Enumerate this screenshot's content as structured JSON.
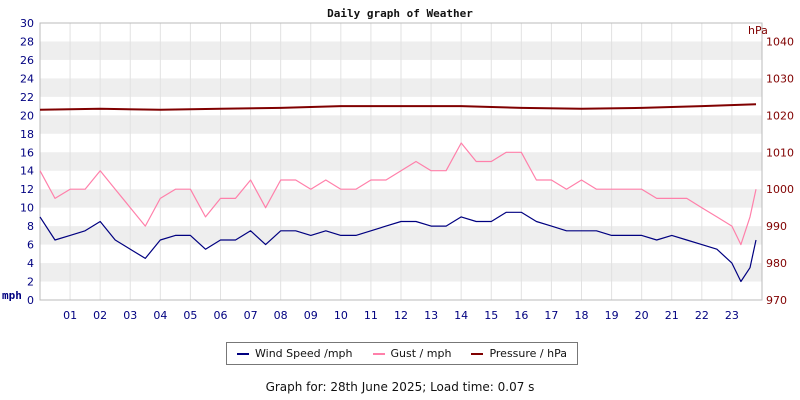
{
  "chart_data": {
    "type": "line",
    "title": "Daily graph of Weather",
    "left_axis": {
      "unit_label": "mph",
      "min": 0,
      "max": 30,
      "step": 2,
      "ticks": [
        "0",
        "2",
        "4",
        "6",
        "8",
        "10",
        "12",
        "14",
        "16",
        "18",
        "20",
        "22",
        "24",
        "26",
        "28",
        "30"
      ]
    },
    "right_axis": {
      "unit_label": "hPa",
      "min": 970,
      "max": 1045,
      "step": 10,
      "ticks": [
        "970",
        "980",
        "990",
        "1000",
        "1010",
        "1020",
        "1030",
        "1040"
      ]
    },
    "x_categories": [
      "01",
      "02",
      "03",
      "04",
      "05",
      "06",
      "07",
      "08",
      "09",
      "10",
      "11",
      "12",
      "13",
      "14",
      "15",
      "16",
      "17",
      "18",
      "19",
      "20",
      "21",
      "22",
      "23"
    ],
    "x_range": [
      0,
      24
    ],
    "series": [
      {
        "name": "Wind Speed /mph",
        "color": "#000080",
        "axis": "left",
        "x": [
          0,
          0.5,
          1,
          1.5,
          2,
          2.5,
          3,
          3.5,
          4,
          4.5,
          5,
          5.5,
          6,
          6.5,
          7,
          7.5,
          8,
          8.5,
          9,
          9.5,
          10,
          10.5,
          11,
          11.5,
          12,
          12.5,
          13,
          13.5,
          14,
          14.5,
          15,
          15.5,
          16,
          16.5,
          17,
          17.5,
          18,
          18.5,
          19,
          19.5,
          20,
          20.5,
          21,
          21.5,
          22,
          22.5,
          23,
          23.3,
          23.6,
          23.8
        ],
        "y": [
          9,
          6.5,
          7,
          7.5,
          8.5,
          6.5,
          5.5,
          4.5,
          6.5,
          7,
          7,
          5.5,
          6.5,
          6.5,
          7.5,
          6,
          7.5,
          7.5,
          7,
          7.5,
          7,
          7,
          7.5,
          8,
          8.5,
          8.5,
          8,
          8,
          9,
          8.5,
          8.5,
          9.5,
          9.5,
          8.5,
          8,
          7.5,
          7.5,
          7.5,
          7,
          7,
          7,
          6.5,
          7,
          6.5,
          6,
          5.5,
          4,
          2,
          3.5,
          6.5
        ]
      },
      {
        "name": "Gust / mph",
        "color": "#ff80aa",
        "axis": "left",
        "x": [
          0,
          0.5,
          1,
          1.5,
          2,
          2.5,
          3,
          3.5,
          4,
          4.5,
          5,
          5.5,
          6,
          6.5,
          7,
          7.5,
          8,
          8.5,
          9,
          9.5,
          10,
          10.5,
          11,
          11.5,
          12,
          12.5,
          13,
          13.5,
          14,
          14.5,
          15,
          15.5,
          16,
          16.5,
          17,
          17.5,
          18,
          18.5,
          19,
          19.5,
          20,
          20.5,
          21,
          21.5,
          22,
          22.5,
          23,
          23.3,
          23.6,
          23.8
        ],
        "y": [
          14,
          11,
          12,
          12,
          14,
          12,
          10,
          8,
          11,
          12,
          12,
          9,
          11,
          11,
          13,
          10,
          13,
          13,
          12,
          13,
          12,
          12,
          13,
          13,
          14,
          15,
          14,
          14,
          17,
          15,
          15,
          16,
          16,
          13,
          13,
          12,
          13,
          12,
          12,
          12,
          12,
          11,
          11,
          11,
          10,
          9,
          8,
          6,
          9,
          12
        ]
      },
      {
        "name": "Pressure / hPa",
        "color": "#800000",
        "axis": "right",
        "x": [
          0,
          2,
          4,
          6,
          8,
          10,
          12,
          14,
          16,
          18,
          20,
          22,
          23.8
        ],
        "y": [
          1021.5,
          1021.8,
          1021.5,
          1021.8,
          1022,
          1022.5,
          1022.5,
          1022.5,
          1022,
          1021.8,
          1022,
          1022.5,
          1023
        ]
      }
    ],
    "grid": true,
    "legend_placement": "bottom"
  },
  "footer": {
    "text": "Graph for: 28th June 2025; Load time: 0.07 s"
  }
}
